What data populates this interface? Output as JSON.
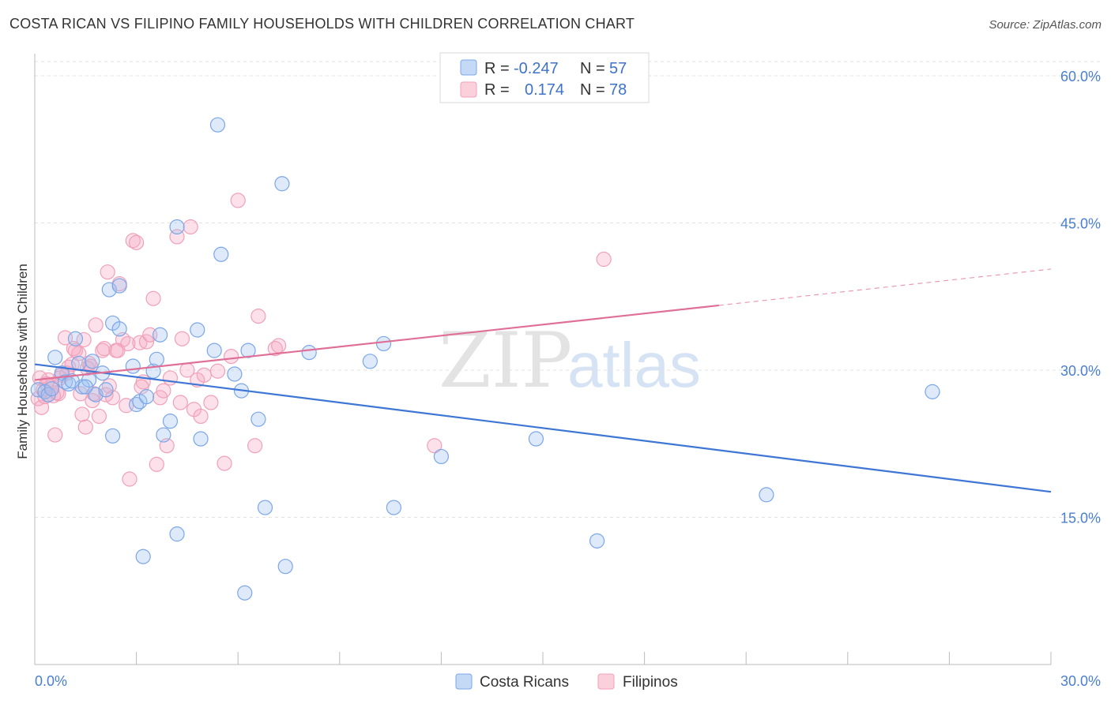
{
  "header": {
    "title": "COSTA RICAN VS FILIPINO FAMILY HOUSEHOLDS WITH CHILDREN CORRELATION CHART",
    "source": "Source: ZipAtlas.com"
  },
  "watermark": {
    "zip": "ZIP",
    "atlas": "atlas"
  },
  "legend": {
    "rows": [
      {
        "r_label": "R =",
        "r_value": "-0.247",
        "n_label": "N =",
        "n_value": "57",
        "color": "#7ba6e8"
      },
      {
        "r_label": "R =",
        "r_value": "0.174",
        "n_label": "N =",
        "n_value": "78",
        "color": "#f0a0b8"
      }
    ],
    "bottom": [
      "Costa Ricans",
      "Filipinos"
    ]
  },
  "chart_data": {
    "type": "scatter",
    "title": "COSTA RICAN VS FILIPINO FAMILY HOUSEHOLDS WITH CHILDREN CORRELATION CHART",
    "xlabel": "",
    "ylabel": "Family Households with Children",
    "xlim": [
      0,
      30
    ],
    "ylim": [
      0,
      60
    ],
    "x_tick_labels": [
      "0.0%",
      "30.0%"
    ],
    "y_tick_labels": [
      "15.0%",
      "30.0%",
      "45.0%",
      "60.0%"
    ],
    "y_ticks": [
      15,
      30,
      45,
      60
    ],
    "grid": true,
    "legend_position": "top-center",
    "series": [
      {
        "name": "Costa Ricans",
        "color": "#7ba6e8",
        "line_color": "#3d76d4",
        "trend": {
          "x0": 0,
          "y0": 30.6,
          "x1": 30,
          "y1": 17.6,
          "dashed_from": null
        },
        "points": [
          [
            0.1,
            28.0
          ],
          [
            0.3,
            27.8
          ],
          [
            0.4,
            27.5
          ],
          [
            0.6,
            31.3
          ],
          [
            0.8,
            29.7
          ],
          [
            0.9,
            28.8
          ],
          [
            1.0,
            28.6
          ],
          [
            1.2,
            33.2
          ],
          [
            1.3,
            30.7
          ],
          [
            1.4,
            28.3
          ],
          [
            1.6,
            29.0
          ],
          [
            1.7,
            30.9
          ],
          [
            1.8,
            27.5
          ],
          [
            2.0,
            29.7
          ],
          [
            2.2,
            38.2
          ],
          [
            2.3,
            34.8
          ],
          [
            2.5,
            34.2
          ],
          [
            2.9,
            30.4
          ],
          [
            3.0,
            26.5
          ],
          [
            3.1,
            26.8
          ],
          [
            3.3,
            27.3
          ],
          [
            3.5,
            29.9
          ],
          [
            3.6,
            31.1
          ],
          [
            3.8,
            23.4
          ],
          [
            4.0,
            24.8
          ],
          [
            4.2,
            44.6
          ],
          [
            4.2,
            13.3
          ],
          [
            4.9,
            23.0
          ],
          [
            5.3,
            32.0
          ],
          [
            5.5,
            41.8
          ],
          [
            5.9,
            29.6
          ],
          [
            6.1,
            27.9
          ],
          [
            6.3,
            32.0
          ],
          [
            6.6,
            25.0
          ],
          [
            6.8,
            16.0
          ],
          [
            7.3,
            49.0
          ],
          [
            7.4,
            10.0
          ],
          [
            8.1,
            31.8
          ],
          [
            9.9,
            30.9
          ],
          [
            10.6,
            16.0
          ],
          [
            12.0,
            21.2
          ],
          [
            14.8,
            23.0
          ],
          [
            16.6,
            12.6
          ],
          [
            21.6,
            17.3
          ],
          [
            26.5,
            27.8
          ],
          [
            0.5,
            28.1
          ],
          [
            1.1,
            28.9
          ],
          [
            2.1,
            28.0
          ],
          [
            3.7,
            33.6
          ],
          [
            4.8,
            34.1
          ],
          [
            3.2,
            11.0
          ],
          [
            6.2,
            7.3
          ],
          [
            2.5,
            38.6
          ],
          [
            5.4,
            55.0
          ],
          [
            2.3,
            23.3
          ],
          [
            1.5,
            28.3
          ],
          [
            10.3,
            32.7
          ]
        ]
      },
      {
        "name": "Filipinos",
        "color": "#f0a0b8",
        "line_color": "#e06f98",
        "trend": {
          "x0": 0,
          "y0": 29.0,
          "x1": 20.2,
          "y1": 36.6,
          "dashed_to_x": 30,
          "dashed_to_y": 40.3
        },
        "points": [
          [
            0.1,
            27.1
          ],
          [
            0.2,
            26.2
          ],
          [
            0.3,
            27.3
          ],
          [
            0.4,
            29.0
          ],
          [
            0.5,
            28.3
          ],
          [
            0.6,
            23.4
          ],
          [
            0.7,
            27.6
          ],
          [
            0.8,
            29.5
          ],
          [
            0.9,
            33.3
          ],
          [
            1.0,
            30.3
          ],
          [
            1.1,
            30.6
          ],
          [
            1.2,
            32.0
          ],
          [
            1.3,
            31.7
          ],
          [
            1.4,
            25.5
          ],
          [
            1.5,
            24.2
          ],
          [
            1.6,
            30.7
          ],
          [
            1.7,
            26.9
          ],
          [
            1.8,
            34.6
          ],
          [
            1.9,
            25.3
          ],
          [
            2.0,
            32.0
          ],
          [
            2.1,
            27.5
          ],
          [
            2.2,
            28.4
          ],
          [
            2.3,
            27.2
          ],
          [
            2.4,
            32.0
          ],
          [
            2.5,
            38.8
          ],
          [
            2.6,
            33.1
          ],
          [
            2.7,
            26.4
          ],
          [
            2.8,
            18.9
          ],
          [
            2.9,
            43.2
          ],
          [
            3.0,
            43.0
          ],
          [
            3.1,
            32.8
          ],
          [
            3.2,
            28.8
          ],
          [
            3.3,
            32.9
          ],
          [
            3.4,
            33.6
          ],
          [
            3.5,
            37.3
          ],
          [
            3.6,
            20.4
          ],
          [
            3.7,
            27.2
          ],
          [
            3.8,
            27.9
          ],
          [
            3.9,
            22.3
          ],
          [
            4.0,
            29.2
          ],
          [
            4.2,
            43.6
          ],
          [
            4.3,
            26.7
          ],
          [
            4.5,
            30.0
          ],
          [
            4.6,
            44.6
          ],
          [
            4.7,
            26.0
          ],
          [
            4.8,
            29.0
          ],
          [
            4.9,
            25.3
          ],
          [
            5.0,
            29.5
          ],
          [
            5.2,
            26.7
          ],
          [
            5.4,
            29.9
          ],
          [
            5.6,
            20.5
          ],
          [
            5.8,
            31.4
          ],
          [
            6.0,
            47.3
          ],
          [
            6.5,
            22.3
          ],
          [
            6.6,
            35.5
          ],
          [
            7.1,
            32.2
          ],
          [
            7.2,
            32.5
          ],
          [
            11.8,
            22.3
          ],
          [
            16.8,
            41.3
          ],
          [
            0.25,
            28.0
          ],
          [
            0.55,
            27.4
          ],
          [
            0.75,
            29.2
          ],
          [
            0.95,
            29.7
          ],
          [
            1.15,
            32.2
          ],
          [
            1.35,
            27.6
          ],
          [
            1.55,
            30.2
          ],
          [
            1.75,
            27.6
          ],
          [
            2.05,
            32.2
          ],
          [
            2.15,
            40.0
          ],
          [
            2.45,
            32.0
          ],
          [
            0.15,
            29.2
          ],
          [
            0.35,
            28.6
          ],
          [
            0.65,
            27.7
          ],
          [
            1.45,
            33.1
          ],
          [
            1.65,
            30.4
          ],
          [
            2.75,
            32.7
          ],
          [
            3.15,
            28.3
          ],
          [
            4.35,
            33.2
          ]
        ]
      }
    ]
  }
}
